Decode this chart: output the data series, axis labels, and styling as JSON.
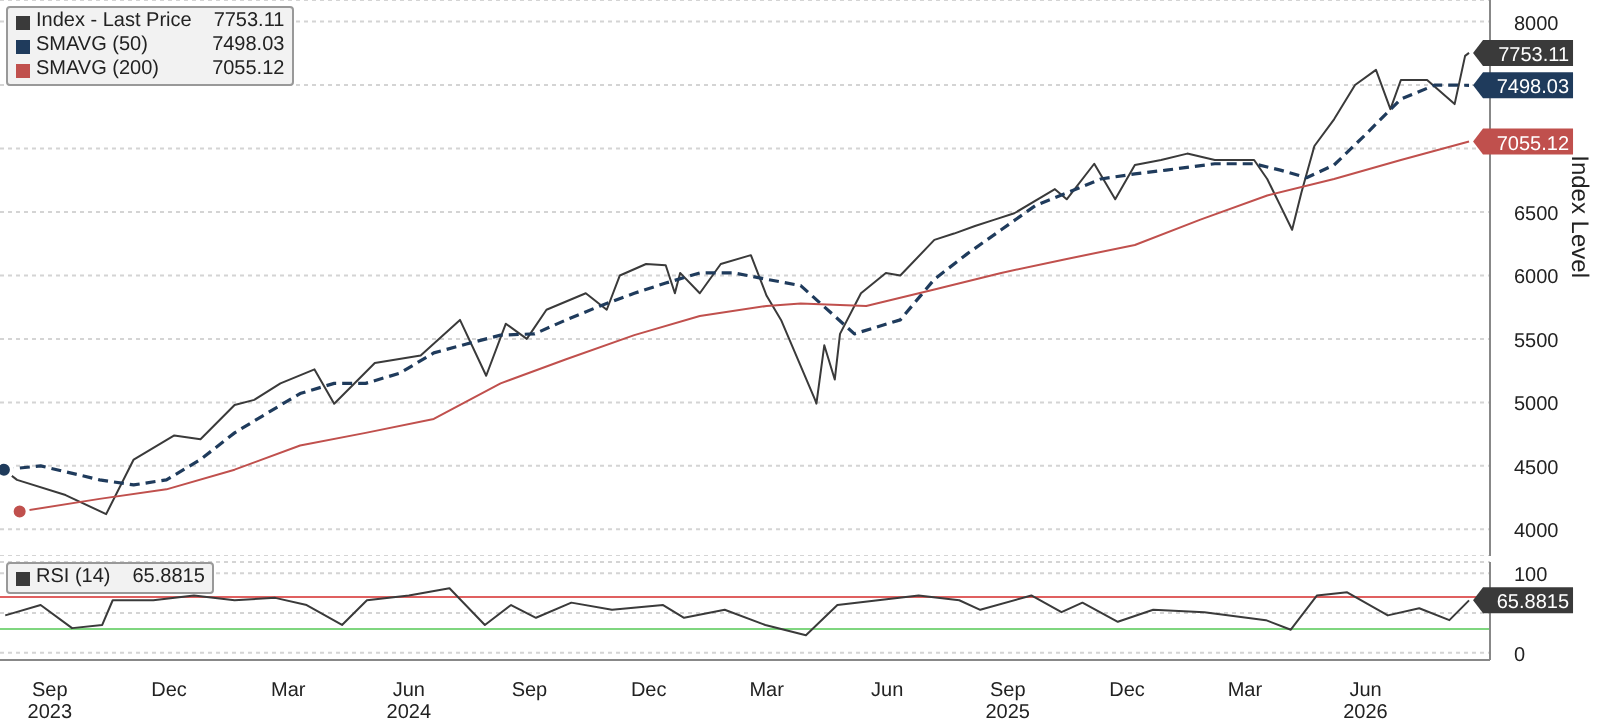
{
  "chart_data": [
    {
      "type": "line",
      "ylabel": "Index Level",
      "xlim": [
        "2023-08-08",
        "2026-09-18"
      ],
      "ylim": [
        3790,
        8170
      ],
      "yticks": [
        4000,
        4500,
        5000,
        5500,
        6000,
        6500,
        {
          "value": 7000,
          "label": null
        },
        {
          "value": 7500,
          "label": null
        },
        8000
      ],
      "grid": "y",
      "legend": "top left",
      "marker": "none",
      "tick_labels": "y",
      "series": [
        {
          "name": "Index - Last Price",
          "color": "#3a3a3a",
          "line_style": "solid",
          "x": [
            "2023-08-11",
            "2023-08-21",
            "2023-09-27",
            "2023-10-28",
            "2023-11-18",
            "2023-12-19",
            "2024-01-08",
            "2024-02-03",
            "2024-02-18",
            "2024-03-09",
            "2024-04-04",
            "2024-04-19",
            "2024-05-20",
            "2024-06-24",
            "2024-07-24",
            "2024-08-13",
            "2024-08-28",
            "2024-09-13",
            "2024-09-28",
            "2024-10-28",
            "2024-11-13",
            "2024-11-23",
            "2024-12-13",
            "2024-12-28",
            "2025-01-04",
            "2025-01-08",
            "2025-01-23",
            "2025-02-08",
            "2025-03-03",
            "2025-03-15",
            "2025-03-26",
            "2025-04-21",
            "2025-04-22",
            "2025-04-28",
            "2025-05-06",
            "2025-05-10",
            "2025-05-26",
            "2025-06-14",
            "2025-06-25",
            "2025-07-21",
            "2025-08-05",
            "2025-08-21",
            "2025-09-05",
            "2025-09-20",
            "2025-10-21",
            "2025-10-30",
            "2025-11-20",
            "2025-12-06",
            "2025-12-21",
            "2026-01-10",
            "2026-01-30",
            "2026-02-20",
            "2026-03-22",
            "2026-04-01",
            "2026-04-11",
            "2026-04-20",
            "2026-04-27",
            "2026-05-07",
            "2026-05-22",
            "2026-06-07",
            "2026-06-23",
            "2026-07-04",
            "2026-07-12",
            "2026-08-01",
            "2026-08-22",
            "2026-08-30",
            "2026-09-02"
          ],
          "values": [
            4470,
            4390,
            4270,
            4120,
            4550,
            4740,
            4710,
            4980,
            5020,
            5150,
            5260,
            4990,
            5310,
            5370,
            5650,
            5210,
            5620,
            5500,
            5730,
            5860,
            5730,
            6000,
            6090,
            6080,
            5860,
            6020,
            5860,
            6090,
            6160,
            5840,
            5650,
            5020,
            4990,
            5450,
            5180,
            5540,
            5860,
            6020,
            6000,
            6280,
            6330,
            6390,
            6440,
            6490,
            6680,
            6600,
            6880,
            6600,
            6870,
            6910,
            6960,
            6910,
            6910,
            6760,
            6550,
            6360,
            6650,
            7020,
            7230,
            7500,
            7620,
            7310,
            7540,
            7540,
            7350,
            7730,
            7753.11
          ],
          "value_labels": [
            null,
            null,
            null,
            null,
            null,
            null,
            null,
            null,
            null,
            null,
            null,
            null,
            null,
            null,
            null,
            null,
            null,
            null,
            null,
            null,
            null,
            null,
            null,
            null,
            null,
            null,
            null,
            null,
            null,
            null,
            null,
            null,
            null,
            null,
            null,
            null,
            null,
            null,
            null,
            null,
            null,
            null,
            null,
            null,
            null,
            null,
            null,
            null,
            null,
            null,
            null,
            null,
            null,
            null,
            null,
            null,
            null,
            null,
            null,
            null,
            null,
            null,
            null,
            null,
            null,
            null,
            "7753.11"
          ]
        },
        {
          "name": "SMAVG (50)",
          "color": "#1f3b5c",
          "line_style": "dashed",
          "x": [
            "2023-08-11",
            "2023-09-08",
            "2023-10-23",
            "2023-11-18",
            "2023-12-13",
            "2024-01-08",
            "2024-02-03",
            "2024-02-27",
            "2024-03-24",
            "2024-04-19",
            "2024-05-13",
            "2024-06-08",
            "2024-07-04",
            "2024-07-29",
            "2024-08-24",
            "2024-09-19",
            "2024-10-13",
            "2024-11-08",
            "2024-12-04",
            "2024-12-28",
            "2025-01-23",
            "2025-02-18",
            "2025-03-15",
            "2025-04-10",
            "2025-05-21",
            "2025-06-25",
            "2025-07-21",
            "2025-08-15",
            "2025-09-10",
            "2025-10-06",
            "2025-10-30",
            "2025-11-25",
            "2025-12-21",
            "2026-01-14",
            "2026-02-20",
            "2026-03-22",
            "2026-04-11",
            "2026-05-01",
            "2026-05-22",
            "2026-06-16",
            "2026-07-12",
            "2026-08-07",
            "2026-09-02"
          ],
          "values": [
            4470,
            4500,
            4390,
            4350,
            4390,
            4550,
            4760,
            4910,
            5070,
            5150,
            5150,
            5230,
            5390,
            5460,
            5530,
            5540,
            5650,
            5760,
            5860,
            5940,
            6020,
            6020,
            5970,
            5920,
            5540,
            5650,
            5970,
            6170,
            6360,
            6550,
            6650,
            6760,
            6800,
            6830,
            6880,
            6880,
            6830,
            6770,
            6870,
            7120,
            7390,
            7500,
            7498.03
          ],
          "value_labels": [
            null,
            null,
            null,
            null,
            null,
            null,
            null,
            null,
            null,
            null,
            null,
            null,
            null,
            null,
            null,
            null,
            null,
            null,
            null,
            null,
            null,
            null,
            null,
            null,
            null,
            null,
            null,
            null,
            null,
            null,
            null,
            null,
            null,
            null,
            null,
            null,
            null,
            null,
            null,
            null,
            null,
            null,
            "7498.03"
          ]
        },
        {
          "name": "SMAVG (200)",
          "color": "#c0504d",
          "line_style": "solid",
          "x": [
            "2023-08-23",
            "2023-10-23",
            "2023-12-13",
            "2024-02-03",
            "2024-03-24",
            "2024-05-13",
            "2024-07-04",
            "2024-08-24",
            "2024-10-13",
            "2024-12-04",
            "2025-01-23",
            "2025-03-15",
            "2025-04-10",
            "2025-05-30",
            "2025-07-21",
            "2025-09-10",
            "2025-10-30",
            "2025-12-21",
            "2026-02-09",
            "2026-04-01",
            "2026-05-22",
            "2026-07-12",
            "2026-09-02"
          ],
          "values": [
            4140,
            4240,
            4315,
            4470,
            4660,
            4760,
            4870,
            5150,
            5340,
            5530,
            5680,
            5760,
            5780,
            5760,
            5890,
            6020,
            6130,
            6240,
            6440,
            6630,
            6760,
            6910,
            7055.12
          ],
          "value_labels": [
            null,
            null,
            null,
            null,
            null,
            null,
            null,
            null,
            null,
            null,
            null,
            null,
            null,
            null,
            null,
            null,
            null,
            null,
            null,
            null,
            null,
            null,
            "7055.12"
          ]
        }
      ]
    },
    {
      "type": "line",
      "xlim": [
        "2023-08-08",
        "2026-09-18"
      ],
      "ylim": [
        -9,
        114
      ],
      "yticks": [
        0,
        {
          "value": 50,
          "label": null
        },
        100
      ],
      "grid": "y",
      "legend": "top left",
      "marker": "none",
      "xticks": [
        {
          "value": "2023-09-15",
          "label": "Sep\n2023"
        },
        {
          "value": "2023-12-15",
          "label": "Dec"
        },
        {
          "value": "2024-03-15",
          "label": "Mar"
        },
        {
          "value": "2024-06-15",
          "label": "Jun\n2024"
        },
        {
          "value": "2024-09-15",
          "label": "Sep"
        },
        {
          "value": "2024-12-15",
          "label": "Dec"
        },
        {
          "value": "2025-03-15",
          "label": "Mar"
        },
        {
          "value": "2025-06-15",
          "label": "Jun"
        },
        {
          "value": "2025-09-15",
          "label": "Sep\n2025"
        },
        {
          "value": "2025-12-15",
          "label": "Dec"
        },
        {
          "value": "2026-03-15",
          "label": "Mar"
        },
        {
          "value": "2026-06-15",
          "label": "Jun\n2026"
        }
      ],
      "ref_lines": [
        {
          "axis": "y",
          "value": 70,
          "color": "#e06060"
        },
        {
          "axis": "y",
          "value": 30,
          "color": "#7fd67f"
        }
      ],
      "series": [
        {
          "name": "RSI (14)",
          "color": "#3a3a3a",
          "line_style": "solid",
          "x": [
            "2023-08-12",
            "2023-09-08",
            "2023-10-02",
            "2023-10-25",
            "2023-11-02",
            "2023-12-03",
            "2024-01-03",
            "2024-02-03",
            "2024-03-05",
            "2024-03-29",
            "2024-04-25",
            "2024-05-14",
            "2024-06-15",
            "2024-07-16",
            "2024-08-12",
            "2024-09-01",
            "2024-09-20",
            "2024-10-17",
            "2024-11-17",
            "2024-12-26",
            "2025-01-11",
            "2025-02-11",
            "2025-03-14",
            "2025-04-14",
            "2025-05-08",
            "2025-06-08",
            "2025-07-09",
            "2025-08-09",
            "2025-08-25",
            "2025-10-03",
            "2025-10-26",
            "2025-11-11",
            "2025-12-08",
            "2026-01-04",
            "2026-02-12",
            "2026-03-31",
            "2026-04-19",
            "2026-05-09",
            "2026-06-01",
            "2026-07-02",
            "2026-07-26",
            "2026-08-18",
            "2026-09-02"
          ],
          "values": [
            47,
            60,
            31,
            35,
            66,
            66,
            72,
            66,
            69,
            60,
            35,
            66,
            72,
            81,
            35,
            60,
            44,
            63,
            54,
            60,
            44,
            54,
            35,
            22,
            60,
            66,
            72,
            66,
            54,
            72,
            51,
            63,
            39,
            54,
            51,
            41,
            29,
            72,
            76,
            47,
            56,
            41,
            65.8815
          ],
          "value_labels": [
            null,
            null,
            null,
            null,
            null,
            null,
            null,
            null,
            null,
            null,
            null,
            null,
            null,
            null,
            null,
            null,
            null,
            null,
            null,
            null,
            null,
            null,
            null,
            null,
            null,
            null,
            null,
            null,
            null,
            null,
            null,
            null,
            null,
            null,
            null,
            null,
            null,
            null,
            null,
            null,
            null,
            null,
            "65.8815"
          ]
        }
      ]
    }
  ]
}
